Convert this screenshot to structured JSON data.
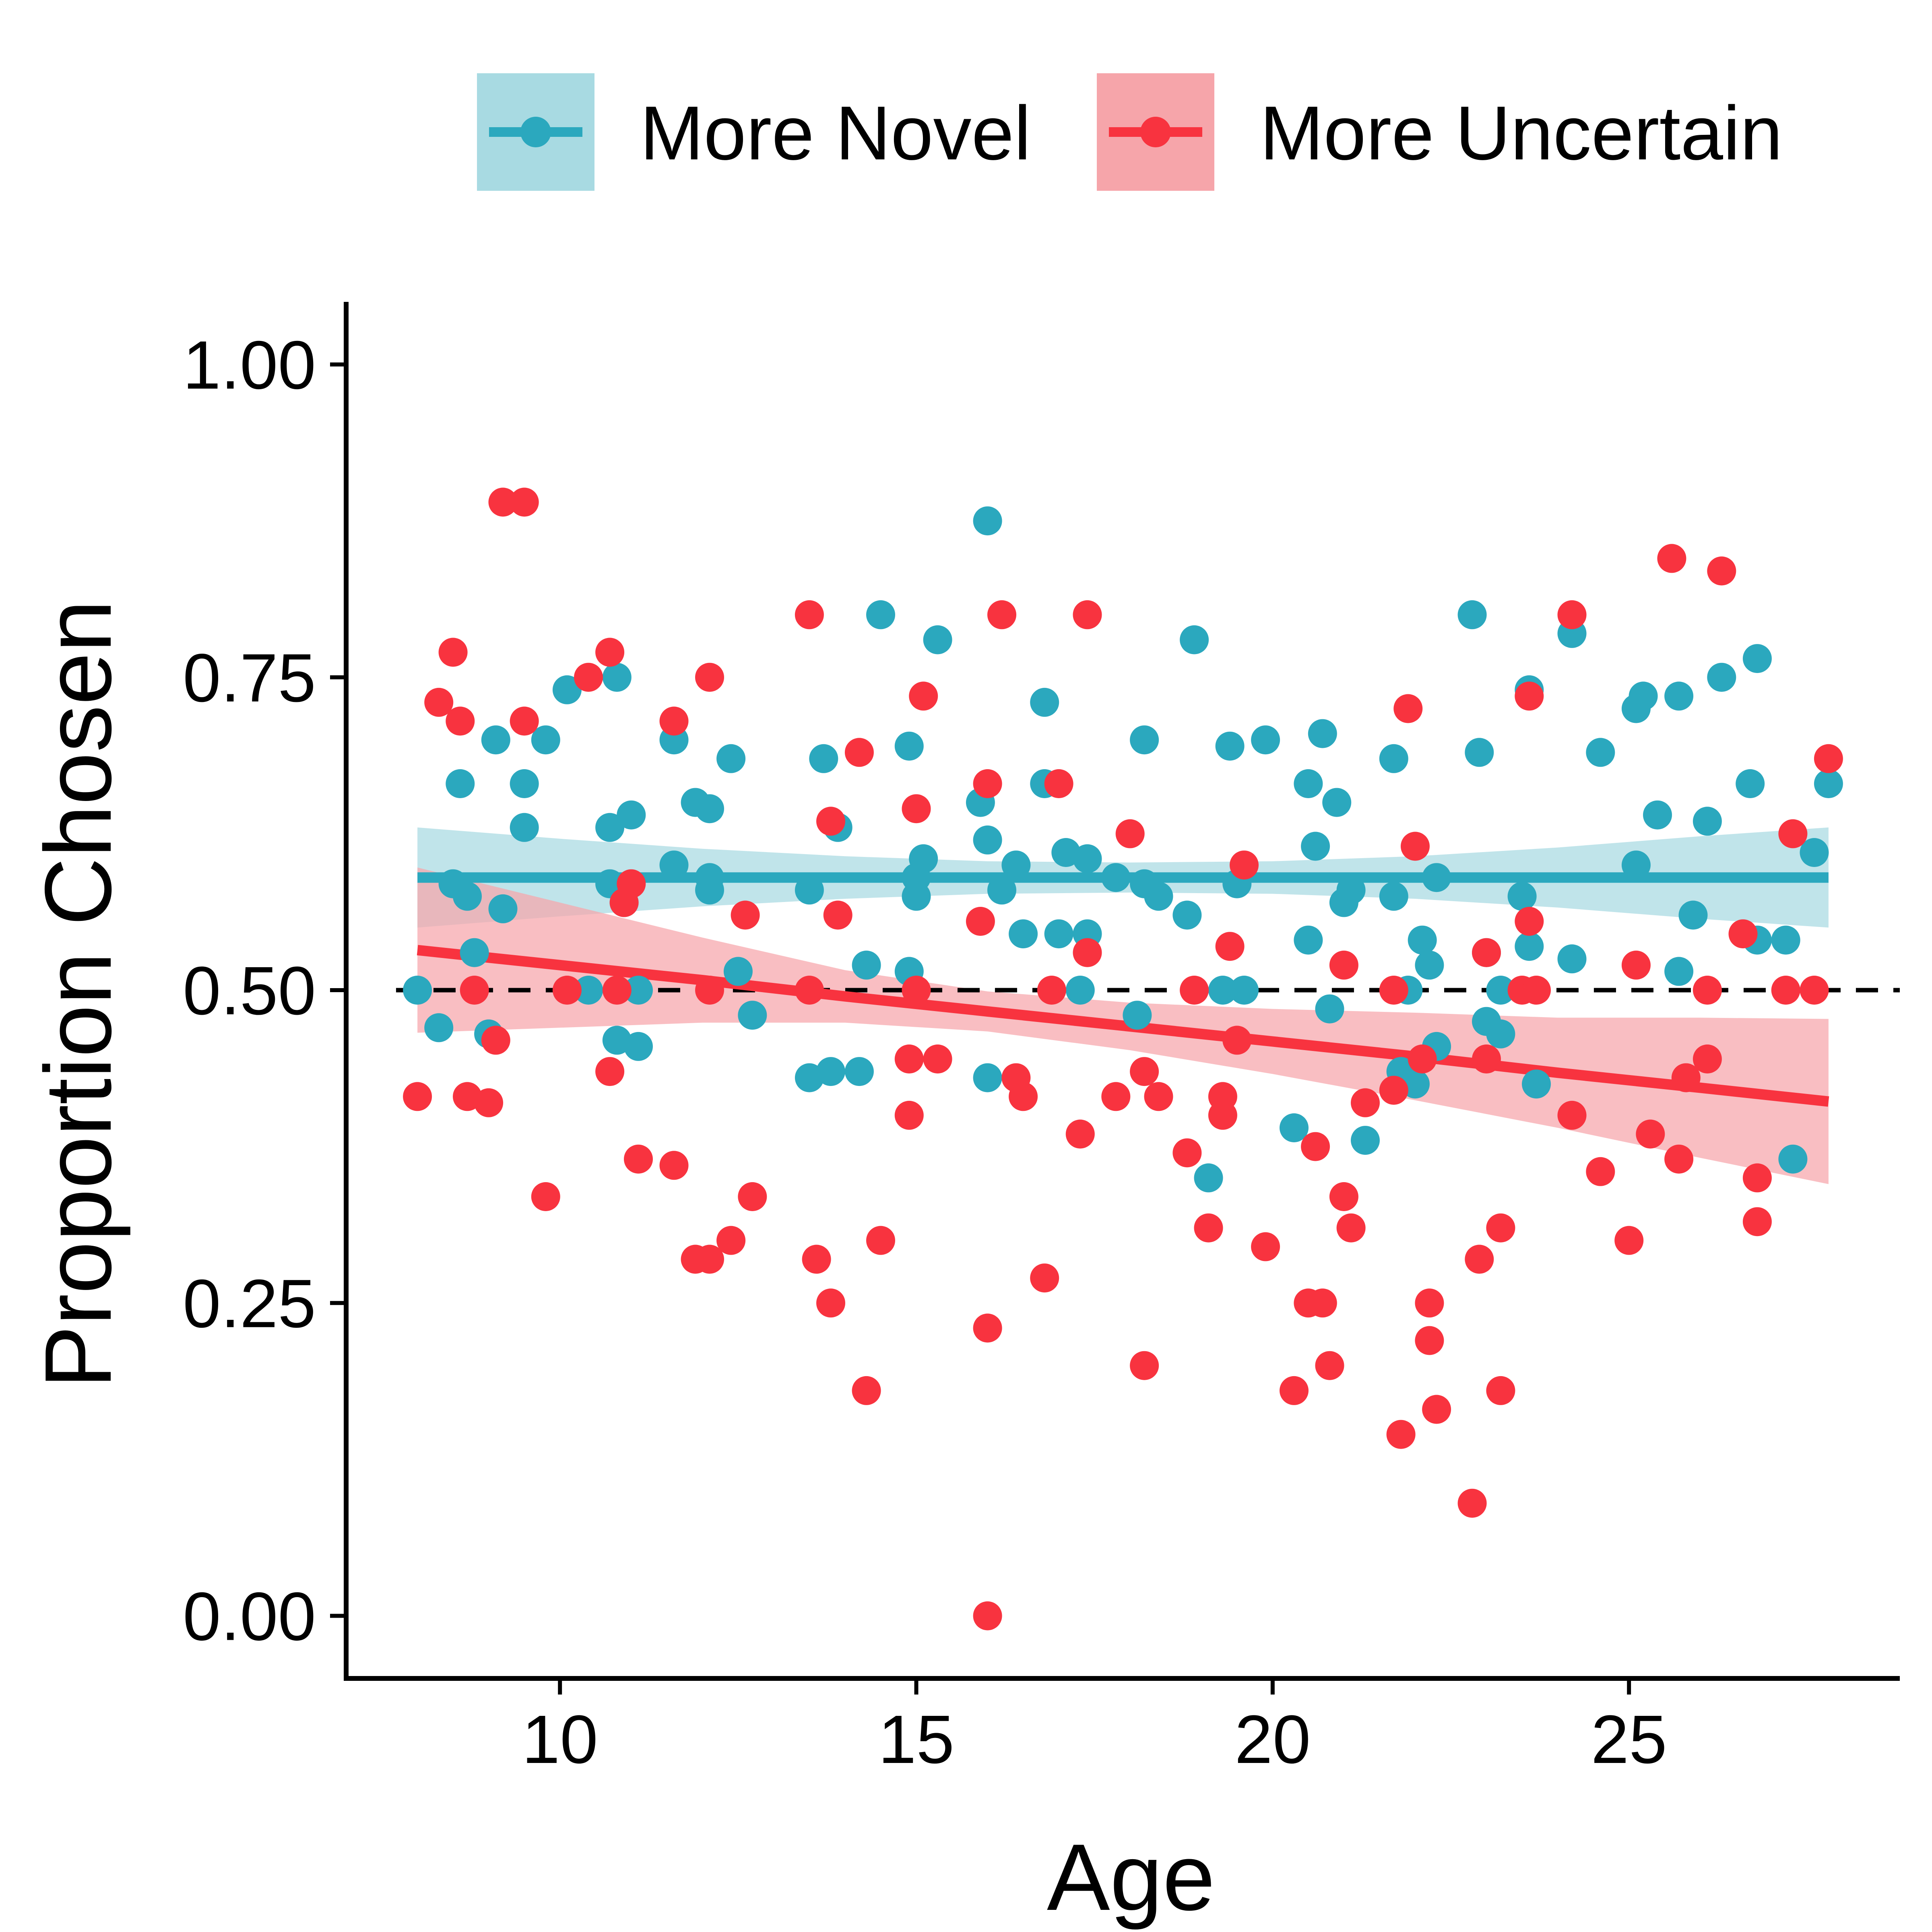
{
  "chart_data": {
    "type": "scatter",
    "xlabel": "Age",
    "ylabel": "Proportion Chosen",
    "xlim": [
      7.0,
      28.8
    ],
    "ylim": [
      -0.05,
      1.05
    ],
    "x_ticks": [
      10,
      15,
      20,
      25
    ],
    "x_tick_labels": [
      "10",
      "15",
      "20",
      "25"
    ],
    "y_ticks": [
      0.0,
      0.25,
      0.5,
      0.75,
      1.0
    ],
    "y_tick_labels": [
      "0.00",
      "0.25",
      "0.50",
      "0.75",
      "1.00"
    ],
    "reference_line": {
      "y": 0.5,
      "style": "dashed",
      "color": "#000000"
    },
    "grid": false,
    "legend": {
      "position": "top",
      "entries": [
        {
          "label": "More Novel",
          "color": "#2BA8BE",
          "band_color": "#A8DAE2"
        },
        {
          "label": "More Uncertain",
          "color": "#F8333F",
          "band_color": "#F6A5AA"
        }
      ]
    },
    "series": [
      {
        "name": "More Novel",
        "color": "#2BA8BE",
        "band_color": "#A8DAE2",
        "fit": {
          "x": [
            8.0,
            10.0,
            12.0,
            14.0,
            16.0,
            18.0,
            20.0,
            22.0,
            24.0,
            26.0,
            27.8
          ],
          "y": [
            0.59,
            0.59,
            0.59,
            0.59,
            0.59,
            0.59,
            0.59,
            0.59,
            0.59,
            0.59,
            0.59
          ],
          "lower": [
            0.55,
            0.559,
            0.567,
            0.573,
            0.577,
            0.578,
            0.577,
            0.573,
            0.566,
            0.557,
            0.55
          ],
          "upper": [
            0.63,
            0.621,
            0.613,
            0.607,
            0.603,
            0.602,
            0.603,
            0.607,
            0.614,
            0.623,
            0.63
          ]
        },
        "points": [
          [
            8.0,
            0.5
          ],
          [
            8.3,
            0.47
          ],
          [
            8.5,
            0.585
          ],
          [
            8.6,
            0.665
          ],
          [
            8.7,
            0.575
          ],
          [
            8.8,
            0.53
          ],
          [
            9.0,
            0.465
          ],
          [
            9.1,
            0.7
          ],
          [
            9.2,
            0.565
          ],
          [
            9.5,
            0.63
          ],
          [
            9.5,
            0.665
          ],
          [
            9.8,
            0.7
          ],
          [
            10.1,
            0.74
          ],
          [
            10.4,
            0.5
          ],
          [
            10.7,
            0.63
          ],
          [
            10.7,
            0.585
          ],
          [
            10.8,
            0.75
          ],
          [
            10.8,
            0.46
          ],
          [
            10.9,
            0.57
          ],
          [
            11.0,
            0.64
          ],
          [
            11.1,
            0.455
          ],
          [
            11.1,
            0.5
          ],
          [
            11.6,
            0.7
          ],
          [
            11.6,
            0.6
          ],
          [
            11.9,
            0.65
          ],
          [
            12.1,
            0.645
          ],
          [
            12.1,
            0.59
          ],
          [
            12.1,
            0.58
          ],
          [
            12.4,
            0.685
          ],
          [
            12.5,
            0.515
          ],
          [
            12.7,
            0.48
          ],
          [
            13.5,
            0.58
          ],
          [
            13.5,
            0.43
          ],
          [
            13.7,
            0.685
          ],
          [
            13.8,
            0.435
          ],
          [
            13.9,
            0.63
          ],
          [
            14.2,
            0.435
          ],
          [
            14.3,
            0.52
          ],
          [
            14.5,
            0.8
          ],
          [
            14.9,
            0.695
          ],
          [
            14.9,
            0.515
          ],
          [
            15.0,
            0.59
          ],
          [
            15.0,
            0.575
          ],
          [
            15.1,
            0.605
          ],
          [
            15.3,
            0.78
          ],
          [
            15.9,
            0.65
          ],
          [
            16.0,
            0.875
          ],
          [
            16.0,
            0.62
          ],
          [
            16.0,
            0.43
          ],
          [
            16.2,
            0.58
          ],
          [
            16.4,
            0.6
          ],
          [
            16.5,
            0.545
          ],
          [
            16.8,
            0.73
          ],
          [
            16.8,
            0.665
          ],
          [
            17.0,
            0.545
          ],
          [
            17.1,
            0.61
          ],
          [
            17.3,
            0.5
          ],
          [
            17.4,
            0.605
          ],
          [
            17.4,
            0.545
          ],
          [
            17.8,
            0.59
          ],
          [
            18.1,
            0.48
          ],
          [
            18.2,
            0.7
          ],
          [
            18.2,
            0.585
          ],
          [
            18.4,
            0.575
          ],
          [
            18.8,
            0.56
          ],
          [
            18.9,
            0.78
          ],
          [
            19.1,
            0.35
          ],
          [
            19.3,
            0.5
          ],
          [
            19.4,
            0.695
          ],
          [
            19.5,
            0.585
          ],
          [
            19.6,
            0.5
          ],
          [
            19.9,
            0.7
          ],
          [
            20.3,
            0.39
          ],
          [
            20.5,
            0.665
          ],
          [
            20.5,
            0.54
          ],
          [
            20.6,
            0.615
          ],
          [
            20.7,
            0.705
          ],
          [
            20.8,
            0.485
          ],
          [
            20.9,
            0.65
          ],
          [
            21.0,
            0.57
          ],
          [
            21.1,
            0.58
          ],
          [
            21.3,
            0.38
          ],
          [
            21.7,
            0.685
          ],
          [
            21.7,
            0.575
          ],
          [
            21.8,
            0.435
          ],
          [
            21.9,
            0.5
          ],
          [
            22.0,
            0.425
          ],
          [
            22.1,
            0.54
          ],
          [
            22.2,
            0.52
          ],
          [
            22.3,
            0.59
          ],
          [
            22.3,
            0.455
          ],
          [
            22.8,
            0.8
          ],
          [
            22.9,
            0.69
          ],
          [
            23.0,
            0.475
          ],
          [
            23.0,
            0.53
          ],
          [
            23.2,
            0.5
          ],
          [
            23.2,
            0.465
          ],
          [
            23.5,
            0.575
          ],
          [
            23.6,
            0.74
          ],
          [
            23.6,
            0.535
          ],
          [
            23.7,
            0.425
          ],
          [
            24.2,
            0.785
          ],
          [
            24.2,
            0.525
          ],
          [
            24.6,
            0.69
          ],
          [
            25.1,
            0.725
          ],
          [
            25.1,
            0.6
          ],
          [
            25.2,
            0.735
          ],
          [
            25.4,
            0.64
          ],
          [
            25.7,
            0.735
          ],
          [
            25.7,
            0.515
          ],
          [
            25.9,
            0.56
          ],
          [
            26.1,
            0.635
          ],
          [
            26.3,
            0.75
          ],
          [
            26.7,
            0.665
          ],
          [
            26.8,
            0.765
          ],
          [
            26.8,
            0.54
          ],
          [
            27.2,
            0.54
          ],
          [
            27.3,
            0.365
          ],
          [
            27.6,
            0.61
          ],
          [
            27.8,
            0.665
          ]
        ]
      },
      {
        "name": "More Uncertain",
        "color": "#F8333F",
        "band_color": "#F6A5AA",
        "fit": {
          "x": [
            8.0,
            10.0,
            12.0,
            14.0,
            16.0,
            18.0,
            20.0,
            22.0,
            24.0,
            26.0,
            27.8
          ],
          "y": [
            0.532,
            0.52,
            0.508,
            0.495,
            0.483,
            0.471,
            0.459,
            0.447,
            0.434,
            0.422,
            0.411
          ],
          "lower": [
            0.466,
            0.47,
            0.474,
            0.474,
            0.467,
            0.452,
            0.433,
            0.412,
            0.39,
            0.366,
            0.345
          ],
          "upper": [
            0.598,
            0.57,
            0.542,
            0.516,
            0.499,
            0.49,
            0.485,
            0.482,
            0.478,
            0.478,
            0.477
          ]
        },
        "points": [
          [
            8.0,
            0.415
          ],
          [
            8.3,
            0.73
          ],
          [
            8.5,
            0.77
          ],
          [
            8.6,
            0.715
          ],
          [
            8.7,
            0.415
          ],
          [
            8.8,
            0.5
          ],
          [
            9.0,
            0.41
          ],
          [
            9.1,
            0.46
          ],
          [
            9.2,
            0.89
          ],
          [
            9.5,
            0.89
          ],
          [
            9.5,
            0.715
          ],
          [
            9.8,
            0.335
          ],
          [
            10.1,
            0.5
          ],
          [
            10.4,
            0.75
          ],
          [
            10.7,
            0.77
          ],
          [
            10.7,
            0.435
          ],
          [
            10.8,
            0.5
          ],
          [
            10.9,
            0.57
          ],
          [
            11.0,
            0.585
          ],
          [
            11.1,
            0.365
          ],
          [
            11.6,
            0.715
          ],
          [
            11.6,
            0.36
          ],
          [
            11.9,
            0.285
          ],
          [
            12.1,
            0.75
          ],
          [
            12.1,
            0.5
          ],
          [
            12.1,
            0.285
          ],
          [
            12.4,
            0.3
          ],
          [
            12.6,
            0.56
          ],
          [
            12.7,
            0.335
          ],
          [
            13.5,
            0.8
          ],
          [
            13.5,
            0.5
          ],
          [
            13.6,
            0.285
          ],
          [
            13.8,
            0.25
          ],
          [
            13.8,
            0.635
          ],
          [
            13.9,
            0.56
          ],
          [
            14.2,
            0.69
          ],
          [
            14.3,
            0.18
          ],
          [
            14.5,
            0.3
          ],
          [
            14.9,
            0.4
          ],
          [
            14.9,
            0.445
          ],
          [
            15.0,
            0.645
          ],
          [
            15.0,
            0.5
          ],
          [
            15.1,
            0.735
          ],
          [
            15.3,
            0.445
          ],
          [
            15.9,
            0.555
          ],
          [
            16.0,
            0.665
          ],
          [
            16.0,
            0.23
          ],
          [
            16.0,
            0.0
          ],
          [
            16.2,
            0.8
          ],
          [
            16.4,
            0.43
          ],
          [
            16.5,
            0.415
          ],
          [
            16.8,
            0.27
          ],
          [
            16.9,
            0.5
          ],
          [
            17.0,
            0.665
          ],
          [
            17.3,
            0.385
          ],
          [
            17.4,
            0.8
          ],
          [
            17.4,
            0.53
          ],
          [
            17.8,
            0.415
          ],
          [
            18.0,
            0.625
          ],
          [
            18.2,
            0.435
          ],
          [
            18.2,
            0.2
          ],
          [
            18.4,
            0.415
          ],
          [
            18.8,
            0.37
          ],
          [
            18.9,
            0.5
          ],
          [
            19.1,
            0.31
          ],
          [
            19.3,
            0.4
          ],
          [
            19.3,
            0.415
          ],
          [
            19.4,
            0.535
          ],
          [
            19.5,
            0.46
          ],
          [
            19.6,
            0.6
          ],
          [
            19.9,
            0.295
          ],
          [
            20.3,
            0.18
          ],
          [
            20.5,
            0.25
          ],
          [
            20.6,
            0.375
          ],
          [
            20.7,
            0.25
          ],
          [
            20.8,
            0.2
          ],
          [
            21.0,
            0.52
          ],
          [
            21.0,
            0.335
          ],
          [
            21.1,
            0.31
          ],
          [
            21.3,
            0.41
          ],
          [
            21.7,
            0.42
          ],
          [
            21.7,
            0.5
          ],
          [
            21.8,
            0.145
          ],
          [
            21.9,
            0.725
          ],
          [
            22.0,
            0.615
          ],
          [
            22.1,
            0.445
          ],
          [
            22.2,
            0.25
          ],
          [
            22.2,
            0.22
          ],
          [
            22.3,
            0.165
          ],
          [
            22.8,
            0.09
          ],
          [
            22.9,
            0.285
          ],
          [
            23.0,
            0.445
          ],
          [
            23.0,
            0.53
          ],
          [
            23.2,
            0.31
          ],
          [
            23.2,
            0.18
          ],
          [
            23.5,
            0.5
          ],
          [
            23.6,
            0.555
          ],
          [
            23.6,
            0.735
          ],
          [
            23.7,
            0.5
          ],
          [
            24.2,
            0.8
          ],
          [
            24.2,
            0.4
          ],
          [
            24.6,
            0.355
          ],
          [
            25.0,
            0.3
          ],
          [
            25.1,
            0.52
          ],
          [
            25.3,
            0.385
          ],
          [
            25.6,
            0.845
          ],
          [
            25.7,
            0.365
          ],
          [
            25.8,
            0.43
          ],
          [
            26.1,
            0.5
          ],
          [
            26.1,
            0.445
          ],
          [
            26.3,
            0.835
          ],
          [
            26.6,
            0.545
          ],
          [
            26.8,
            0.35
          ],
          [
            26.8,
            0.315
          ],
          [
            27.2,
            0.5
          ],
          [
            27.3,
            0.625
          ],
          [
            27.6,
            0.5
          ],
          [
            27.8,
            0.685
          ]
        ]
      }
    ]
  }
}
